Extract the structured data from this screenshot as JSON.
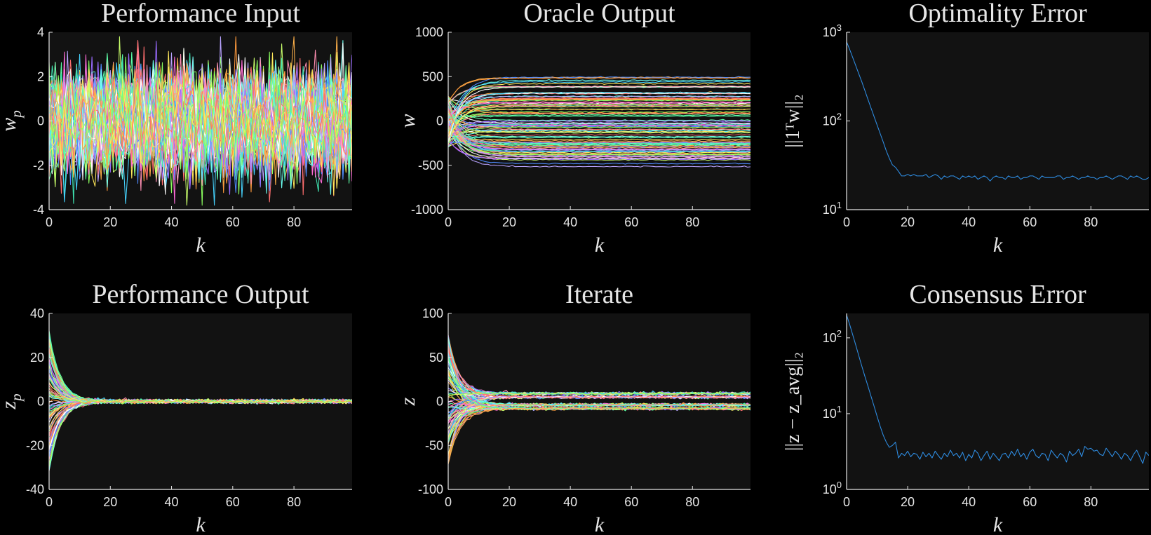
{
  "figure": {
    "background": "#000000",
    "plot_background": "#121212",
    "text_color": "#e6e6e6",
    "single_series_color": "#2f8fe6",
    "trace_palette": [
      "#ff6e6e",
      "#ffb14a",
      "#ffe85c",
      "#8bff5f",
      "#3fe3b0",
      "#46d4ff",
      "#4f8bff",
      "#9a6bff",
      "#ff6bd8",
      "#ff8fb3",
      "#c9ff6b",
      "#6bfff0",
      "#ffffff",
      "#ff9a3d",
      "#b8a3ff",
      "#5bffa6"
    ]
  },
  "chart_data": [
    {
      "id": "performance-input",
      "type": "line",
      "title": "Performance Input",
      "xlabel": "k",
      "ylabel": "w",
      "ylabel_sub": "p",
      "xlim": [
        0,
        99
      ],
      "ylim": [
        -4,
        4
      ],
      "xticks": [
        0,
        20,
        40,
        60,
        80
      ],
      "yticks": [
        -4,
        -2,
        0,
        2,
        4
      ],
      "yticklabels": [
        "-4",
        "-2",
        "0",
        "2",
        "4"
      ],
      "yscale": "linear",
      "grid": false,
      "series_count": 100,
      "description_of_series": "random noise, amplitude ~3",
      "model": {
        "kind": "noise",
        "sigma": 1.0,
        "clip": 3.8
      }
    },
    {
      "id": "oracle-output",
      "type": "line",
      "title": "Oracle Output",
      "xlabel": "k",
      "ylabel": "w",
      "xlim": [
        0,
        99
      ],
      "ylim": [
        -1000,
        1000
      ],
      "xticks": [
        0,
        20,
        40,
        60,
        80
      ],
      "yticks": [
        -1000,
        -500,
        0,
        500,
        1000
      ],
      "yticklabels": [
        "-1000",
        "-500",
        "0",
        "500",
        "1000"
      ],
      "yscale": "linear",
      "grid": false,
      "series_count": 100,
      "model": {
        "kind": "rise",
        "start_range": [
          -300,
          300
        ],
        "final_range": [
          -780,
          780
        ],
        "rate": 0.25,
        "noise": 3
      }
    },
    {
      "id": "optimality-error",
      "type": "line",
      "title": "Optimality Error",
      "xlabel": "k",
      "ylabel": "||1ᵀw||₂",
      "xlim": [
        0,
        99
      ],
      "ylim": [
        10,
        1000
      ],
      "xticks": [
        0,
        20,
        40,
        60,
        80
      ],
      "yticks": [
        10,
        100,
        1000
      ],
      "yticklabels": [
        "10^1",
        "10^2",
        "10^3"
      ],
      "yscale": "log",
      "grid": false,
      "series": [
        {
          "values": [
            780,
            640,
            520,
            420,
            340,
            275,
            220,
            175,
            140,
            112,
            90,
            72,
            58,
            46,
            38,
            32,
            30,
            27,
            24,
            24,
            25,
            24,
            25,
            24,
            24,
            24,
            25,
            23,
            24,
            25,
            24,
            22,
            24,
            23,
            24,
            24,
            23,
            22,
            24,
            23,
            24,
            23,
            24,
            22,
            23,
            24,
            23,
            21,
            23,
            24,
            23,
            23,
            22,
            24,
            23,
            23,
            24,
            22,
            23,
            23,
            24,
            24,
            23,
            22,
            24,
            23,
            23,
            23,
            23,
            24,
            24,
            22,
            23,
            23,
            24,
            23,
            22,
            23,
            23,
            24,
            23,
            23,
            22,
            23,
            23,
            24,
            23,
            22,
            23,
            24,
            24,
            23,
            22,
            24,
            23,
            24,
            23,
            22,
            22,
            23
          ]
        }
      ]
    },
    {
      "id": "performance-output",
      "type": "line",
      "title": "Performance Output",
      "xlabel": "k",
      "ylabel": "z",
      "ylabel_sub": "p",
      "xlim": [
        0,
        99
      ],
      "ylim": [
        -40,
        40
      ],
      "xticks": [
        0,
        20,
        40,
        60,
        80
      ],
      "yticks": [
        -40,
        -20,
        0,
        20,
        40
      ],
      "yticklabels": [
        "-40",
        "-20",
        "0",
        "20",
        "40"
      ],
      "yscale": "linear",
      "grid": false,
      "series_count": 100,
      "model": {
        "kind": "decay",
        "start_range": [
          -33,
          33
        ],
        "final_range": [
          0,
          0
        ],
        "rate": 0.28,
        "noise": 0.4
      }
    },
    {
      "id": "iterate",
      "type": "line",
      "title": "Iterate",
      "xlabel": "k",
      "ylabel": "z",
      "xlim": [
        0,
        99
      ],
      "ylim": [
        -100,
        100
      ],
      "xticks": [
        0,
        20,
        40,
        60,
        80
      ],
      "yticks": [
        -100,
        -50,
        0,
        50,
        100
      ],
      "yticklabels": [
        "-100",
        "-50",
        "0",
        "50",
        "100"
      ],
      "yscale": "linear",
      "grid": false,
      "series_count": 100,
      "model": {
        "kind": "bimodal",
        "start_range": [
          -72,
          76
        ],
        "levels": [
          9,
          5,
          -4,
          -8
        ],
        "rate": 0.26,
        "noise": 0.8
      }
    },
    {
      "id": "consensus-error",
      "type": "line",
      "title": "Consensus Error",
      "xlabel": "k",
      "ylabel": "||z − z_avg||₂",
      "xlim": [
        0,
        99
      ],
      "ylim": [
        1,
        210
      ],
      "xticks": [
        0,
        20,
        40,
        60,
        80
      ],
      "yticks": [
        1,
        10,
        100
      ],
      "yticklabels": [
        "10^0",
        "10^1",
        "10^2"
      ],
      "yscale": "log",
      "grid": false,
      "series": [
        {
          "values": [
            200,
            150,
            110,
            80,
            58,
            42,
            31,
            23,
            17,
            12.5,
            9.2,
            6.8,
            5.2,
            4.2,
            3.6,
            3.8,
            4.2,
            2.6,
            3.0,
            2.8,
            3.2,
            2.7,
            3.0,
            2.9,
            2.5,
            3.1,
            2.7,
            3.0,
            2.6,
            3.2,
            2.8,
            2.5,
            3.0,
            2.7,
            3.3,
            2.8,
            3.0,
            2.6,
            3.1,
            2.4,
            2.9,
            2.6,
            3.3,
            3.0,
            2.4,
            2.8,
            3.2,
            2.5,
            3.0,
            2.7,
            2.4,
            2.9,
            3.0,
            2.6,
            3.2,
            2.8,
            3.4,
            2.7,
            3.0,
            2.5,
            3.1,
            3.4,
            2.8,
            2.6,
            3.0,
            2.9,
            2.4,
            3.3,
            2.9,
            2.6,
            3.0,
            2.8,
            2.3,
            3.2,
            2.8,
            3.0,
            3.4,
            2.7,
            3.7,
            3.4,
            3.5,
            3.2,
            3.3,
            2.9,
            2.8,
            3.5,
            3.1,
            2.7,
            3.2,
            2.9,
            2.5,
            3.0,
            2.8,
            2.4,
            2.9,
            3.3,
            2.7,
            2.2,
            3.1,
            2.8
          ]
        }
      ]
    }
  ]
}
